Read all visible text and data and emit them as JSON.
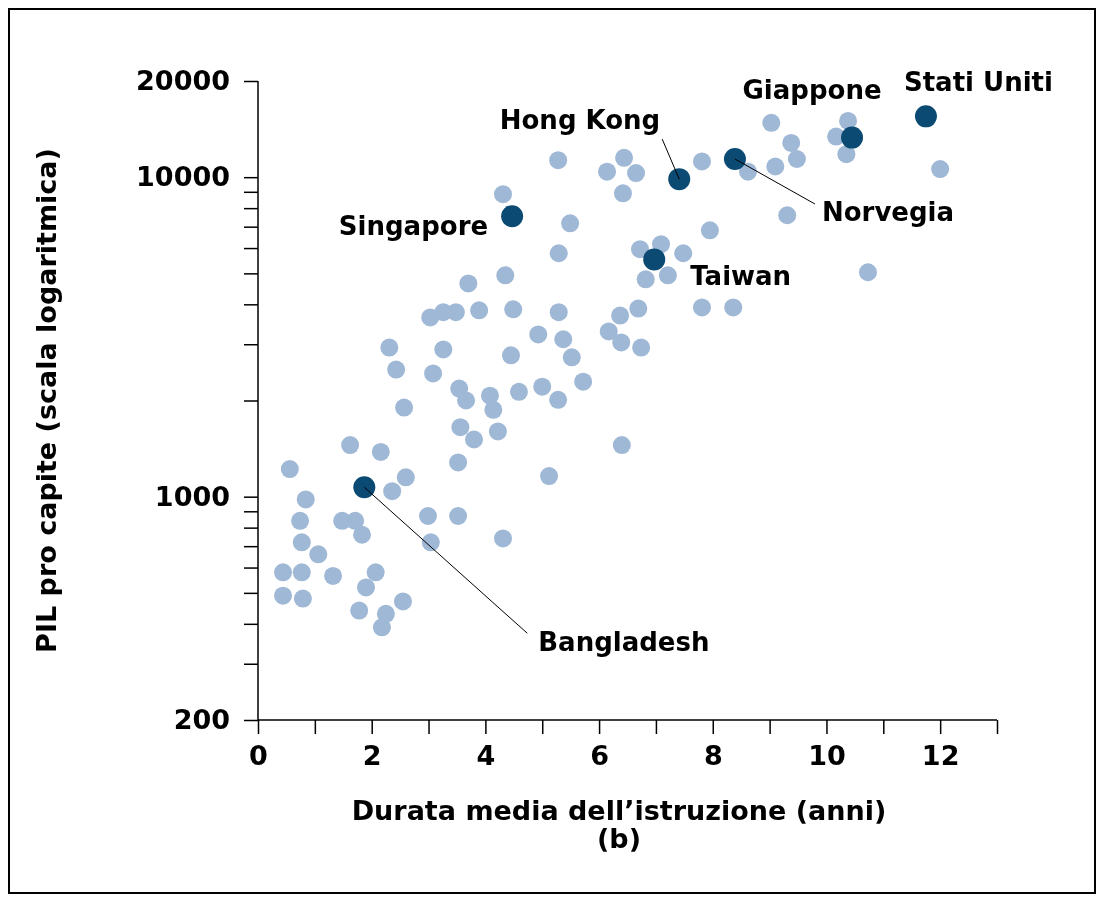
{
  "chart_data": {
    "type": "scatter",
    "xlabel": "Durata media dell’istruzione (anni)",
    "ylabel": "PIL pro capite (scala logaritmica)",
    "log": "y",
    "marker": "circle",
    "xlim": [
      0,
      13
    ],
    "xticks": [
      0,
      {
        "value": 1,
        "label": null
      },
      2,
      {
        "value": 3,
        "label": null
      },
      4,
      {
        "value": 5,
        "label": null
      },
      6,
      {
        "value": 7,
        "label": null
      },
      8,
      {
        "value": 9,
        "label": null
      },
      10,
      {
        "value": 11,
        "label": null
      },
      12,
      {
        "value": 13,
        "label": null
      }
    ],
    "ylim": [
      200,
      20000
    ],
    "yticks": [
      200,
      {
        "value": 300,
        "label": null
      },
      {
        "value": 400,
        "label": null
      },
      {
        "value": 500,
        "label": null
      },
      {
        "value": 600,
        "label": null
      },
      {
        "value": 700,
        "label": null
      },
      {
        "value": 800,
        "label": null
      },
      {
        "value": 900,
        "label": null
      },
      1000,
      {
        "value": 2000,
        "label": null
      },
      {
        "value": 3000,
        "label": null
      },
      {
        "value": 4000,
        "label": null
      },
      {
        "value": 5000,
        "label": null
      },
      {
        "value": 6000,
        "label": null
      },
      {
        "value": 7000,
        "label": null
      },
      {
        "value": 8000,
        "label": null
      },
      {
        "value": 9000,
        "label": null
      },
      10000,
      20000
    ],
    "series": [
      {
        "color": "#9fb8d6",
        "x": [
          0.44,
          0.44,
          0.56,
          0.77,
          0.79,
          0.74,
          0.77,
          0.84,
          1.06,
          1.32,
          1.48,
          1.62,
          1.71,
          1.78,
          1.83,
          1.9,
          2.07,
          2.16,
          2.18,
          2.25,
          2.31,
          2.36,
          2.43,
          2.55,
          2.57,
          2.6,
          2.99,
          3.03,
          3.08,
          3.04,
          3.26,
          3.26,
          3.48,
          3.52,
          3.52,
          3.54,
          3.56,
          3.66,
          3.7,
          3.8,
          3.89,
          4.08,
          4.14,
          4.22,
          4.31,
          4.35,
          4.31,
          4.45,
          4.49,
          4.59,
          4.93,
          5.0,
          5.12,
          5.28,
          5.28,
          5.29,
          5.29,
          5.37,
          5.49,
          5.52,
          5.72,
          6.14,
          6.17,
          6.37,
          6.39,
          6.4,
          6.42,
          6.44,
          6.65,
          6.69,
          6.72,
          6.74,
          6.82,
          7.09,
          7.21,
          7.48,
          7.81,
          7.81,
          7.95,
          8.36,
          8.62,
          9.03,
          9.1,
          9.31,
          9.38,
          9.48,
          10.17,
          10.35,
          10.38,
          10.73,
          12.0
        ],
        "values": [
          580,
          490,
          1220,
          580,
          480,
          840,
          720,
          980,
          660,
          565,
          840,
          1450,
          840,
          440,
          760,
          520,
          580,
          1380,
          390,
          430,
          2930,
          1040,
          2500,
          470,
          1900,
          1150,
          870,
          3640,
          2430,
          720,
          3780,
          2890,
          3780,
          870,
          1280,
          2180,
          1650,
          2000,
          4650,
          1510,
          3830,
          2070,
          1870,
          1600,
          8850,
          4930,
          740,
          2770,
          3860,
          2130,
          3220,
          2210,
          1160,
          11300,
          2010,
          5780,
          3780,
          3110,
          7170,
          2730,
          2290,
          10400,
          3290,
          3690,
          3040,
          1450,
          8900,
          11500,
          10300,
          3880,
          5950,
          2930,
          4790,
          6170,
          4930,
          5780,
          11200,
          3910,
          6820,
          3910,
          10400,
          14800,
          10800,
          7600,
          12800,
          11400,
          13400,
          11800,
          15000,
          5040,
          10600
        ]
      },
      {
        "color": "#0b4a72",
        "x": [
          4.47,
          1.87,
          7.41,
          6.97,
          8.39,
          10.45,
          11.75
        ],
        "values": [
          7550,
          1070,
          9860,
          5530,
          11400,
          13300,
          15500
        ]
      }
    ],
    "annotations": [
      {
        "text": "Singapore",
        "x": 4.47,
        "y": 7550
      },
      {
        "text": "Hong Kong",
        "x": 7.41,
        "y": 9860
      },
      {
        "text": "Giappone",
        "x": 10.45,
        "y": 13300
      },
      {
        "text": "Stati Uniti",
        "x": 11.75,
        "y": 15500
      },
      {
        "text": "Norvegia",
        "x": 8.39,
        "y": 11400
      },
      {
        "text": "Taiwan",
        "x": 6.97,
        "y": 5530
      },
      {
        "text": "Bangladesh",
        "x": 1.87,
        "y": 1070
      },
      "(b)"
    ]
  }
}
